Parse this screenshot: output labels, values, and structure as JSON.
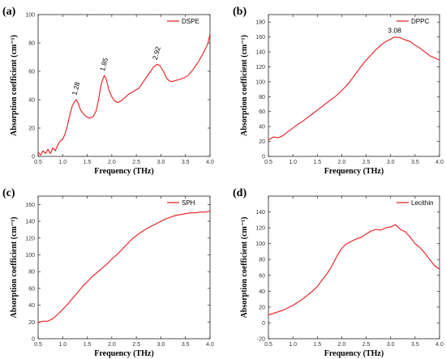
{
  "colors": {
    "line": "#e8191c",
    "axis": "#222222"
  },
  "chart_data": [
    {
      "type": "line",
      "panel": "(a)",
      "xlabel": "Frequency (THz)",
      "ylabel": "Absorption coefficient (cm⁻¹)",
      "xlim": [
        0.5,
        4.0
      ],
      "ylim": [
        0,
        100
      ],
      "xticks": [
        "0.5",
        "1.0",
        "1.5",
        "2.0",
        "2.5",
        "3.0",
        "3.5",
        "4.0"
      ],
      "yticks": [
        "0",
        "20",
        "40",
        "60",
        "80",
        "100"
      ],
      "legend_position": "top-right",
      "grid": false,
      "annotations": [
        {
          "text": "1.28",
          "x": 1.28,
          "y": 40
        },
        {
          "text": "1.85",
          "x": 1.85,
          "y": 57
        },
        {
          "text": "2.92",
          "x": 2.92,
          "y": 65
        }
      ],
      "series": [
        {
          "name": "DSPE",
          "x": [
            0.5,
            0.55,
            0.6,
            0.65,
            0.7,
            0.75,
            0.8,
            0.85,
            0.9,
            0.95,
            1.0,
            1.05,
            1.1,
            1.15,
            1.2,
            1.25,
            1.28,
            1.32,
            1.36,
            1.42,
            1.48,
            1.55,
            1.62,
            1.68,
            1.73,
            1.78,
            1.82,
            1.85,
            1.89,
            1.94,
            2.0,
            2.06,
            2.12,
            2.18,
            2.25,
            2.35,
            2.45,
            2.55,
            2.65,
            2.75,
            2.85,
            2.92,
            2.98,
            3.05,
            3.12,
            3.18,
            3.25,
            3.35,
            3.45,
            3.55,
            3.65,
            3.75,
            3.85,
            3.95,
            4.0
          ],
          "y": [
            3,
            1,
            4,
            2,
            5,
            2,
            6,
            4,
            8,
            11,
            12,
            16,
            22,
            30,
            36,
            39,
            40,
            37,
            33,
            30,
            28,
            27,
            28,
            32,
            40,
            50,
            55,
            57,
            54,
            47,
            42,
            39,
            38,
            39,
            41,
            44,
            46,
            48,
            53,
            58,
            63,
            65,
            64,
            60,
            55,
            53,
            53,
            54,
            55,
            57,
            61,
            66,
            72,
            79,
            86
          ]
        }
      ]
    },
    {
      "type": "line",
      "panel": "(b)",
      "xlabel": "Frequency (THz)",
      "ylabel": "Absorption coefficient (cm⁻¹)",
      "xlim": [
        0.5,
        4.0
      ],
      "ylim": [
        0,
        190
      ],
      "xticks": [
        "0.5",
        "1.0",
        "1.5",
        "2.0",
        "2.5",
        "3.0",
        "3.5",
        "4.0"
      ],
      "yticks": [
        "0",
        "20",
        "40",
        "60",
        "80",
        "100",
        "120",
        "140",
        "160",
        "180"
      ],
      "legend_position": "top-right",
      "grid": false,
      "annotations": [
        {
          "text": "3.08",
          "x": 3.08,
          "y": 160
        }
      ],
      "series": [
        {
          "name": "DPPC",
          "x": [
            0.5,
            0.6,
            0.7,
            0.8,
            0.9,
            1.0,
            1.1,
            1.2,
            1.3,
            1.4,
            1.5,
            1.6,
            1.7,
            1.8,
            1.9,
            2.0,
            2.1,
            2.2,
            2.3,
            2.4,
            2.5,
            2.6,
            2.7,
            2.8,
            2.9,
            3.0,
            3.08,
            3.2,
            3.3,
            3.4,
            3.5,
            3.6,
            3.7,
            3.8,
            3.9,
            4.0
          ],
          "y": [
            22,
            26,
            25,
            28,
            33,
            38,
            43,
            47,
            52,
            57,
            62,
            67,
            72,
            77,
            82,
            88,
            95,
            103,
            112,
            121,
            129,
            136,
            143,
            149,
            154,
            157,
            160,
            159,
            156,
            154,
            149,
            145,
            140,
            135,
            132,
            129
          ]
        }
      ]
    },
    {
      "type": "line",
      "panel": "(c)",
      "xlabel": "Frequency (THz)",
      "ylabel": "Absorption coefficient (cm⁻¹)",
      "xlim": [
        0.5,
        4.0
      ],
      "ylim": [
        0,
        170
      ],
      "xticks": [
        "0.5",
        "1.0",
        "1.5",
        "2.0",
        "2.5",
        "3.0",
        "3.5",
        "4.0"
      ],
      "yticks": [
        "0",
        "20",
        "40",
        "60",
        "80",
        "100",
        "120",
        "140",
        "160"
      ],
      "legend_position": "top-right",
      "grid": false,
      "annotations": [],
      "series": [
        {
          "name": "SPH",
          "x": [
            0.5,
            0.6,
            0.7,
            0.8,
            0.9,
            1.0,
            1.1,
            1.2,
            1.3,
            1.4,
            1.5,
            1.6,
            1.7,
            1.8,
            1.9,
            2.0,
            2.1,
            2.2,
            2.3,
            2.4,
            2.5,
            2.6,
            2.7,
            2.8,
            2.9,
            3.0,
            3.1,
            3.2,
            3.3,
            3.4,
            3.5,
            3.6,
            3.7,
            3.8,
            3.9,
            4.0
          ],
          "y": [
            19,
            21,
            21,
            24,
            29,
            35,
            41,
            48,
            55,
            62,
            68,
            74,
            79,
            84,
            89,
            95,
            100,
            106,
            112,
            118,
            123,
            127,
            131,
            134,
            137,
            140,
            143,
            145,
            147,
            148,
            149,
            150,
            150,
            151,
            151,
            152
          ]
        }
      ]
    },
    {
      "type": "line",
      "panel": "(d)",
      "xlabel": "Frequency (THz)",
      "ylabel": "Absorption coefficient (cm⁻¹)",
      "xlim": [
        0.5,
        4.0
      ],
      "ylim": [
        -20,
        160
      ],
      "xticks": [
        "0.5",
        "1.0",
        "1.5",
        "2.0",
        "2.5",
        "3.0",
        "3.5",
        "4.0"
      ],
      "yticks": [
        "-20",
        "0",
        "20",
        "40",
        "60",
        "80",
        "100",
        "120",
        "140"
      ],
      "legend_position": "top-right",
      "grid": false,
      "annotations": [],
      "series": [
        {
          "name": "Lecithin",
          "x": [
            0.5,
            0.6,
            0.7,
            0.8,
            0.9,
            1.0,
            1.1,
            1.2,
            1.3,
            1.4,
            1.5,
            1.6,
            1.7,
            1.8,
            1.9,
            2.0,
            2.1,
            2.2,
            2.3,
            2.4,
            2.5,
            2.6,
            2.7,
            2.8,
            2.9,
            3.0,
            3.1,
            3.2,
            3.3,
            3.4,
            3.5,
            3.6,
            3.7,
            3.8,
            3.9,
            4.0
          ],
          "y": [
            10,
            12,
            14,
            16,
            19,
            22,
            26,
            30,
            35,
            40,
            46,
            54,
            62,
            72,
            84,
            94,
            100,
            103,
            106,
            108,
            112,
            116,
            118,
            117,
            120,
            121,
            124,
            118,
            115,
            108,
            100,
            95,
            88,
            80,
            72,
            68
          ]
        }
      ]
    }
  ]
}
